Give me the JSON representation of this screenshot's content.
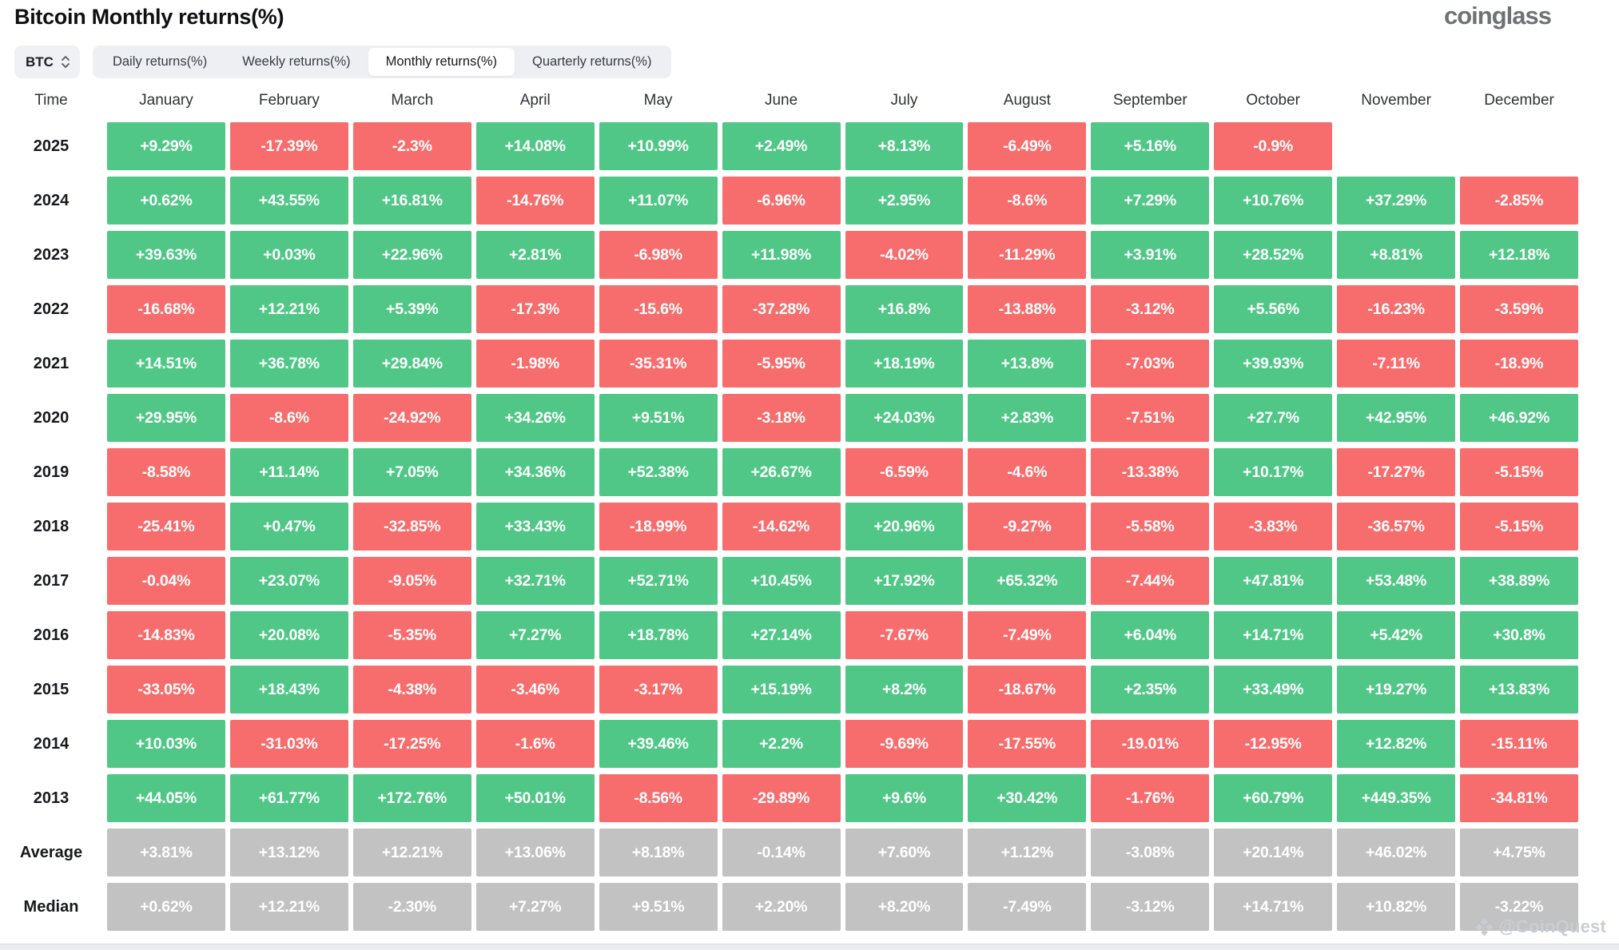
{
  "header": {
    "title": "Bitcoin Monthly returns(%)",
    "logo_text": "coinglass"
  },
  "controls": {
    "symbol": "BTC",
    "tabs": [
      {
        "label": "Daily returns(%)",
        "active": false
      },
      {
        "label": "Weekly returns(%)",
        "active": false
      },
      {
        "label": "Monthly returns(%)",
        "active": true
      },
      {
        "label": "Quarterly returns(%)",
        "active": false
      }
    ]
  },
  "table": {
    "time_header": "Time",
    "months": [
      "January",
      "February",
      "March",
      "April",
      "May",
      "June",
      "July",
      "August",
      "September",
      "October",
      "November",
      "December"
    ],
    "rows": [
      {
        "label": "2025",
        "summary": false,
        "values": [
          "+9.29%",
          "-17.39%",
          "-2.3%",
          "+14.08%",
          "+10.99%",
          "+2.49%",
          "+8.13%",
          "-6.49%",
          "+5.16%",
          "-0.9%",
          "",
          ""
        ]
      },
      {
        "label": "2024",
        "summary": false,
        "values": [
          "+0.62%",
          "+43.55%",
          "+16.81%",
          "-14.76%",
          "+11.07%",
          "-6.96%",
          "+2.95%",
          "-8.6%",
          "+7.29%",
          "+10.76%",
          "+37.29%",
          "-2.85%"
        ]
      },
      {
        "label": "2023",
        "summary": false,
        "values": [
          "+39.63%",
          "+0.03%",
          "+22.96%",
          "+2.81%",
          "-6.98%",
          "+11.98%",
          "-4.02%",
          "-11.29%",
          "+3.91%",
          "+28.52%",
          "+8.81%",
          "+12.18%"
        ]
      },
      {
        "label": "2022",
        "summary": false,
        "values": [
          "-16.68%",
          "+12.21%",
          "+5.39%",
          "-17.3%",
          "-15.6%",
          "-37.28%",
          "+16.8%",
          "-13.88%",
          "-3.12%",
          "+5.56%",
          "-16.23%",
          "-3.59%"
        ]
      },
      {
        "label": "2021",
        "summary": false,
        "values": [
          "+14.51%",
          "+36.78%",
          "+29.84%",
          "-1.98%",
          "-35.31%",
          "-5.95%",
          "+18.19%",
          "+13.8%",
          "-7.03%",
          "+39.93%",
          "-7.11%",
          "-18.9%"
        ]
      },
      {
        "label": "2020",
        "summary": false,
        "values": [
          "+29.95%",
          "-8.6%",
          "-24.92%",
          "+34.26%",
          "+9.51%",
          "-3.18%",
          "+24.03%",
          "+2.83%",
          "-7.51%",
          "+27.7%",
          "+42.95%",
          "+46.92%"
        ]
      },
      {
        "label": "2019",
        "summary": false,
        "values": [
          "-8.58%",
          "+11.14%",
          "+7.05%",
          "+34.36%",
          "+52.38%",
          "+26.67%",
          "-6.59%",
          "-4.6%",
          "-13.38%",
          "+10.17%",
          "-17.27%",
          "-5.15%"
        ]
      },
      {
        "label": "2018",
        "summary": false,
        "values": [
          "-25.41%",
          "+0.47%",
          "-32.85%",
          "+33.43%",
          "-18.99%",
          "-14.62%",
          "+20.96%",
          "-9.27%",
          "-5.58%",
          "-3.83%",
          "-36.57%",
          "-5.15%"
        ]
      },
      {
        "label": "2017",
        "summary": false,
        "values": [
          "-0.04%",
          "+23.07%",
          "-9.05%",
          "+32.71%",
          "+52.71%",
          "+10.45%",
          "+17.92%",
          "+65.32%",
          "-7.44%",
          "+47.81%",
          "+53.48%",
          "+38.89%"
        ]
      },
      {
        "label": "2016",
        "summary": false,
        "values": [
          "-14.83%",
          "+20.08%",
          "-5.35%",
          "+7.27%",
          "+18.78%",
          "+27.14%",
          "-7.67%",
          "-7.49%",
          "+6.04%",
          "+14.71%",
          "+5.42%",
          "+30.8%"
        ]
      },
      {
        "label": "2015",
        "summary": false,
        "values": [
          "-33.05%",
          "+18.43%",
          "-4.38%",
          "-3.46%",
          "-3.17%",
          "+15.19%",
          "+8.2%",
          "-18.67%",
          "+2.35%",
          "+33.49%",
          "+19.27%",
          "+13.83%"
        ]
      },
      {
        "label": "2014",
        "summary": false,
        "values": [
          "+10.03%",
          "-31.03%",
          "-17.25%",
          "-1.6%",
          "+39.46%",
          "+2.2%",
          "-9.69%",
          "-17.55%",
          "-19.01%",
          "-12.95%",
          "+12.82%",
          "-15.11%"
        ]
      },
      {
        "label": "2013",
        "summary": false,
        "values": [
          "+44.05%",
          "+61.77%",
          "+172.76%",
          "+50.01%",
          "-8.56%",
          "-29.89%",
          "+9.6%",
          "+30.42%",
          "-1.76%",
          "+60.79%",
          "+449.35%",
          "-34.81%"
        ]
      },
      {
        "label": "Average",
        "summary": true,
        "values": [
          "+3.81%",
          "+13.12%",
          "+12.21%",
          "+13.06%",
          "+8.18%",
          "-0.14%",
          "+7.60%",
          "+1.12%",
          "-3.08%",
          "+20.14%",
          "+46.02%",
          "+4.75%"
        ]
      },
      {
        "label": "Median",
        "summary": true,
        "values": [
          "+0.62%",
          "+12.21%",
          "-2.30%",
          "+7.27%",
          "+9.51%",
          "+2.20%",
          "+8.20%",
          "-7.49%",
          "-3.12%",
          "+14.71%",
          "+10.82%",
          "-3.22%"
        ]
      }
    ]
  },
  "chart_data": {
    "type": "heatmap",
    "title": "Bitcoin Monthly returns(%)",
    "unit": "%",
    "x_labels": [
      "January",
      "February",
      "March",
      "April",
      "May",
      "June",
      "July",
      "August",
      "September",
      "October",
      "November",
      "December"
    ],
    "y_labels": [
      "2025",
      "2024",
      "2023",
      "2022",
      "2021",
      "2020",
      "2019",
      "2018",
      "2017",
      "2016",
      "2015",
      "2014",
      "2013",
      "Average",
      "Median"
    ],
    "values": [
      [
        9.29,
        -17.39,
        -2.3,
        14.08,
        10.99,
        2.49,
        8.13,
        -6.49,
        5.16,
        -0.9,
        null,
        null
      ],
      [
        0.62,
        43.55,
        16.81,
        -14.76,
        11.07,
        -6.96,
        2.95,
        -8.6,
        7.29,
        10.76,
        37.29,
        -2.85
      ],
      [
        39.63,
        0.03,
        22.96,
        2.81,
        -6.98,
        11.98,
        -4.02,
        -11.29,
        3.91,
        28.52,
        8.81,
        12.18
      ],
      [
        -16.68,
        12.21,
        5.39,
        -17.3,
        -15.6,
        -37.28,
        16.8,
        -13.88,
        -3.12,
        5.56,
        -16.23,
        -3.59
      ],
      [
        14.51,
        36.78,
        29.84,
        -1.98,
        -35.31,
        -5.95,
        18.19,
        13.8,
        -7.03,
        39.93,
        -7.11,
        -18.9
      ],
      [
        29.95,
        -8.6,
        -24.92,
        34.26,
        9.51,
        -3.18,
        24.03,
        2.83,
        -7.51,
        27.7,
        42.95,
        46.92
      ],
      [
        -8.58,
        11.14,
        7.05,
        34.36,
        52.38,
        26.67,
        -6.59,
        -4.6,
        -13.38,
        10.17,
        -17.27,
        -5.15
      ],
      [
        -25.41,
        0.47,
        -32.85,
        33.43,
        -18.99,
        -14.62,
        20.96,
        -9.27,
        -5.58,
        -3.83,
        -36.57,
        -5.15
      ],
      [
        -0.04,
        23.07,
        -9.05,
        32.71,
        52.71,
        10.45,
        17.92,
        65.32,
        -7.44,
        47.81,
        53.48,
        38.89
      ],
      [
        -14.83,
        20.08,
        -5.35,
        7.27,
        18.78,
        27.14,
        -7.67,
        -7.49,
        6.04,
        14.71,
        5.42,
        30.8
      ],
      [
        -33.05,
        18.43,
        -4.38,
        -3.46,
        -3.17,
        15.19,
        8.2,
        -18.67,
        2.35,
        33.49,
        19.27,
        13.83
      ],
      [
        10.03,
        -31.03,
        -17.25,
        -1.6,
        39.46,
        2.2,
        -9.69,
        -17.55,
        -19.01,
        -12.95,
        12.82,
        -15.11
      ],
      [
        44.05,
        61.77,
        172.76,
        50.01,
        -8.56,
        -29.89,
        9.6,
        30.42,
        -1.76,
        60.79,
        449.35,
        -34.81
      ],
      [
        3.81,
        13.12,
        12.21,
        13.06,
        8.18,
        -0.14,
        7.6,
        1.12,
        -3.08,
        20.14,
        46.02,
        4.75
      ],
      [
        0.62,
        12.21,
        -2.3,
        7.27,
        9.51,
        2.2,
        8.2,
        -7.49,
        -3.12,
        14.71,
        10.82,
        -3.22
      ]
    ],
    "legend": "green = positive monthly return, red = negative monthly return, gray = Average/Median summary rows; November/December 2025 have no data"
  },
  "watermark": {
    "text": "@CoinQuest"
  },
  "colors": {
    "positive": "#51c787",
    "negative": "#f76d6d",
    "summary": "#c2c2c2",
    "tabbar_bg": "#edeff2",
    "logo": "#6e7277"
  }
}
